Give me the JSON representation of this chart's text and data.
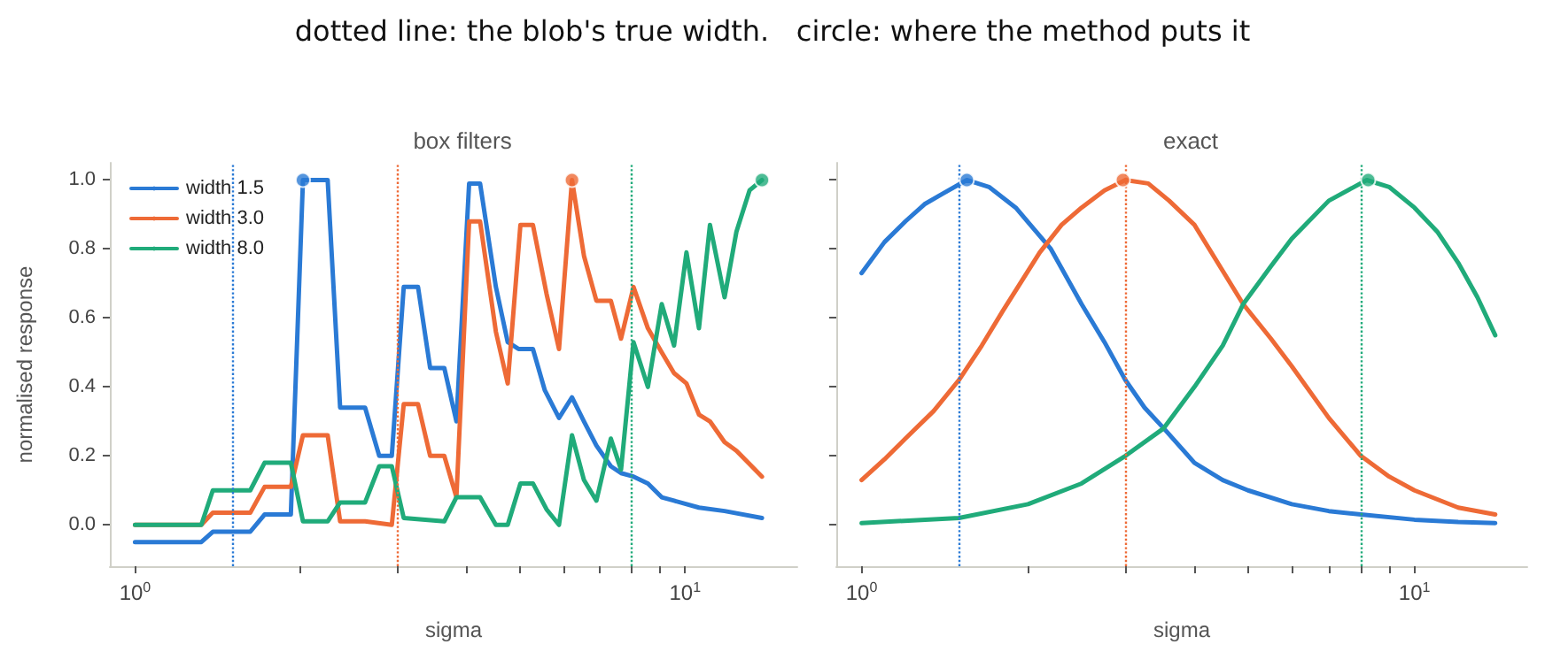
{
  "chart_data": [
    {
      "type": "line",
      "title": "box filters",
      "xlabel": "sigma",
      "ylabel": "normalised response",
      "annotations": [
        "dotted line: the blob's true width.   circle: where the method puts it"
      ],
      "log": "x",
      "grid": false,
      "legend": "top left",
      "line_style": "solid",
      "marker": "none",
      "xlim": [
        0.9,
        16
      ],
      "xticks": [
        {
          "value": 1,
          "label": "10$^{0}$"
        },
        {
          "value": 2,
          "label": null
        },
        {
          "value": 3,
          "label": null
        },
        {
          "value": 4,
          "label": null
        },
        {
          "value": 5,
          "label": null
        },
        {
          "value": 6,
          "label": null
        },
        {
          "value": 7,
          "label": null
        },
        {
          "value": 8,
          "label": null
        },
        {
          "value": 9,
          "label": null
        },
        {
          "value": 10,
          "label": "10$^{1}$"
        }
      ],
      "ylim": [
        -0.12,
        1.05
      ],
      "yticks": [
        {
          "value": 0,
          "label": "0.0"
        },
        {
          "value": 0.2,
          "label": "0.2"
        },
        {
          "value": 0.4,
          "label": "0.4"
        },
        {
          "value": 0.6,
          "label": "0.6"
        },
        {
          "value": 0.8,
          "label": "0.8"
        },
        {
          "value": 1,
          "label": "1.0"
        }
      ],
      "ref_lines": [
        {
          "axis": "x",
          "value": 1.5,
          "color": "#2a7ad5",
          "line_style": "dotted"
        },
        {
          "axis": "x",
          "value": 3.0,
          "color": "#ee6a36",
          "line_style": "dotted"
        },
        {
          "axis": "x",
          "value": 8.0,
          "color": "#20ab7a",
          "line_style": "dotted"
        }
      ],
      "series": [
        {
          "name": "width 1.5",
          "color": "#2a7ad5",
          "x": [
            1,
            1.32,
            1.385,
            1.62,
            1.72,
            1.92,
            2.02,
            2.24,
            2.36,
            2.62,
            2.78,
            2.93,
            3.08,
            3.27,
            3.44,
            3.65,
            3.84,
            4.05,
            4.24,
            4.53,
            4.76,
            4.98,
            5.29,
            5.56,
            5.9,
            6.23,
            6.55,
            6.9,
            7.33,
            7.65,
            8.06,
            8.56,
            9.07,
            9.55,
            10.6,
            11.8,
            13.8
          ],
          "values": [
            -0.05,
            -0.05,
            -0.02,
            -0.02,
            0.03,
            0.03,
            1.0,
            1.0,
            0.34,
            0.34,
            0.2,
            0.2,
            0.69,
            0.69,
            0.455,
            0.455,
            0.3,
            0.99,
            0.99,
            0.69,
            0.53,
            0.51,
            0.51,
            0.39,
            0.31,
            0.37,
            0.3,
            0.23,
            0.17,
            0.15,
            0.14,
            0.12,
            0.08,
            0.07,
            0.05,
            0.04,
            0.02
          ]
        },
        {
          "name": "width 3.0",
          "color": "#ee6a36",
          "x": [
            1,
            1.32,
            1.385,
            1.62,
            1.72,
            1.92,
            2.02,
            2.24,
            2.36,
            2.62,
            2.93,
            3.08,
            3.27,
            3.44,
            3.65,
            3.84,
            4.05,
            4.24,
            4.53,
            4.76,
            5.02,
            5.29,
            5.6,
            5.9,
            6.23,
            6.55,
            6.9,
            7.33,
            7.65,
            8.06,
            8.56,
            9.07,
            9.55,
            10.06,
            10.6,
            11.1,
            11.8,
            12.4,
            13.8
          ],
          "values": [
            0,
            0,
            0.035,
            0.035,
            0.11,
            0.11,
            0.26,
            0.26,
            0.01,
            0.01,
            0,
            0.35,
            0.35,
            0.2,
            0.2,
            0.08,
            0.88,
            0.88,
            0.56,
            0.41,
            0.87,
            0.87,
            0.67,
            0.51,
            1.0,
            0.78,
            0.65,
            0.65,
            0.54,
            0.69,
            0.57,
            0.5,
            0.44,
            0.41,
            0.32,
            0.3,
            0.24,
            0.215,
            0.14
          ]
        },
        {
          "name": "width 8.0",
          "color": "#20ab7a",
          "x": [
            1,
            1.32,
            1.385,
            1.62,
            1.72,
            1.92,
            2.02,
            2.24,
            2.36,
            2.62,
            2.78,
            2.93,
            3.08,
            3.65,
            3.84,
            4.24,
            4.53,
            4.76,
            5.02,
            5.29,
            5.6,
            5.9,
            6.23,
            6.55,
            6.9,
            7.33,
            7.65,
            8.06,
            8.56,
            9.07,
            9.55,
            10.06,
            10.6,
            11.1,
            11.8,
            12.4,
            13.1,
            13.8
          ],
          "values": [
            0,
            0,
            0.1,
            0.1,
            0.18,
            0.18,
            0.01,
            0.01,
            0.065,
            0.065,
            0.17,
            0.17,
            0.02,
            0.01,
            0.08,
            0.08,
            0,
            0,
            0.12,
            0.12,
            0.045,
            0,
            0.26,
            0.13,
            0.07,
            0.25,
            0.16,
            0.53,
            0.4,
            0.64,
            0.52,
            0.79,
            0.57,
            0.87,
            0.66,
            0.85,
            0.97,
            1.0
          ]
        },
        {
          "type": "scatter",
          "marker": "circle",
          "x": [
            2.02,
            6.23,
            13.8
          ],
          "values": [
            1,
            1,
            1
          ],
          "colors": [
            "#2a7ad5",
            "#ee6a36",
            "#20ab7a"
          ]
        }
      ]
    },
    {
      "type": "line",
      "title": "exact",
      "xlabel": "sigma",
      "log": "x",
      "grid": false,
      "line_style": "solid",
      "marker": "none",
      "tick_labels": "x",
      "xlim": [
        0.9,
        16
      ],
      "xticks": [
        {
          "value": 1,
          "label": "10$^{0}$"
        },
        {
          "value": 2,
          "label": null
        },
        {
          "value": 3,
          "label": null
        },
        {
          "value": 4,
          "label": null
        },
        {
          "value": 5,
          "label": null
        },
        {
          "value": 6,
          "label": null
        },
        {
          "value": 7,
          "label": null
        },
        {
          "value": 8,
          "label": null
        },
        {
          "value": 9,
          "label": null
        },
        {
          "value": 10,
          "label": "10$^{1}$"
        }
      ],
      "ylim": [
        -0.12,
        1.05
      ],
      "yticks": [
        {
          "value": 0,
          "label": null
        },
        {
          "value": 0.2,
          "label": null
        },
        {
          "value": 0.4,
          "label": null
        },
        {
          "value": 0.6,
          "label": null
        },
        {
          "value": 0.8,
          "label": null
        },
        {
          "value": 1,
          "label": null
        }
      ],
      "ref_lines": [
        {
          "axis": "x",
          "value": 1.5,
          "color": "#2a7ad5",
          "line_style": "dotted"
        },
        {
          "axis": "x",
          "value": 3.0,
          "color": "#ee6a36",
          "line_style": "dotted"
        },
        {
          "axis": "x",
          "value": 8.0,
          "color": "#20ab7a",
          "line_style": "dotted"
        }
      ],
      "series": [
        {
          "color": "#2a7ad5",
          "x": [
            1,
            1.1,
            1.2,
            1.3,
            1.4,
            1.55,
            1.7,
            1.9,
            2.2,
            2.5,
            2.75,
            3,
            3.25,
            3.52,
            4,
            4.5,
            5,
            6,
            7,
            8,
            10,
            12,
            14
          ],
          "values": [
            0.73,
            0.82,
            0.88,
            0.93,
            0.96,
            1.0,
            0.98,
            0.92,
            0.8,
            0.64,
            0.53,
            0.42,
            0.34,
            0.28,
            0.18,
            0.13,
            0.1,
            0.06,
            0.04,
            0.03,
            0.015,
            0.008,
            0.005
          ]
        },
        {
          "color": "#ee6a36",
          "x": [
            1,
            1.1,
            1.2,
            1.35,
            1.5,
            1.65,
            1.8,
            2.1,
            2.3,
            2.5,
            2.75,
            3,
            3.3,
            3.6,
            4,
            4.9,
            5.5,
            6,
            7,
            8,
            9,
            10,
            12,
            14
          ],
          "values": [
            0.13,
            0.19,
            0.25,
            0.33,
            0.42,
            0.52,
            0.62,
            0.79,
            0.87,
            0.92,
            0.97,
            1.0,
            0.99,
            0.94,
            0.87,
            0.64,
            0.54,
            0.46,
            0.31,
            0.2,
            0.14,
            0.1,
            0.05,
            0.03
          ]
        },
        {
          "color": "#20ab7a",
          "x": [
            1,
            1.5,
            2,
            2.5,
            3,
            3.52,
            4,
            4.5,
            4.9,
            5.5,
            6,
            7,
            8.2,
            9,
            10,
            11,
            12,
            13,
            14
          ],
          "values": [
            0.005,
            0.02,
            0.06,
            0.12,
            0.2,
            0.28,
            0.4,
            0.52,
            0.64,
            0.75,
            0.83,
            0.94,
            1.0,
            0.98,
            0.92,
            0.85,
            0.76,
            0.66,
            0.55
          ]
        },
        {
          "type": "scatter",
          "marker": "circle",
          "x": [
            1.55,
            2.97,
            8.25
          ],
          "values": [
            1,
            1,
            1
          ],
          "colors": [
            "#2a7ad5",
            "#ee6a36",
            "#20ab7a"
          ]
        }
      ]
    }
  ]
}
